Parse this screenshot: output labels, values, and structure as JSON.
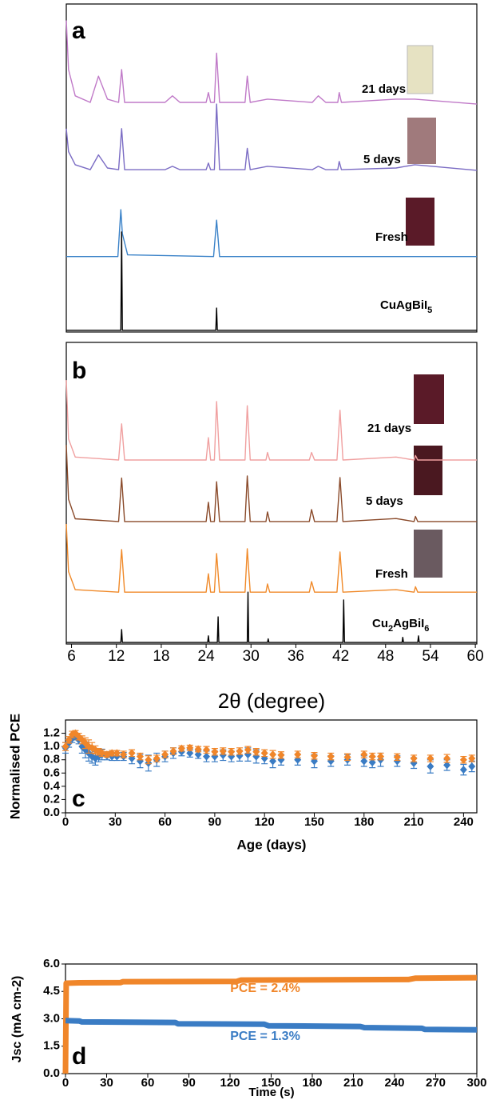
{
  "chart_data": [
    {
      "type": "line",
      "panel_label": "a",
      "xlim": [
        5.3,
        60.2
      ],
      "ylim": [
        0,
        100
      ],
      "series": [
        {
          "name": "21 days",
          "color": "#c07ac8",
          "x": [
            5.3,
            5.6,
            6.5,
            8.5,
            9.6,
            10.8,
            12.3,
            12.7,
            13.1,
            18.5,
            19.5,
            20.5,
            24.0,
            24.3,
            24.6,
            25.1,
            25.4,
            25.8,
            29.2,
            29.5,
            29.9,
            32.2,
            38.2,
            39.0,
            40.0,
            41.6,
            41.8,
            42.1,
            49.4,
            51.9,
            60.2
          ],
          "values": [
            95,
            80,
            72,
            70,
            78,
            71,
            70,
            80,
            70,
            70,
            72,
            70,
            70,
            73,
            70,
            70,
            85,
            70,
            70,
            78,
            70,
            71,
            70,
            72,
            70,
            70,
            73,
            70,
            71,
            71,
            69.5
          ]
        },
        {
          "name": "5 days",
          "color": "#7b6cc4",
          "x": [
            5.3,
            5.6,
            6.5,
            8.5,
            9.6,
            10.8,
            12.3,
            12.7,
            13.1,
            18.5,
            19.5,
            20.5,
            24.0,
            24.3,
            24.6,
            25.1,
            25.4,
            25.8,
            29.2,
            29.5,
            29.9,
            32.2,
            38.2,
            39.0,
            40.0,
            41.6,
            41.8,
            42.1,
            49.4,
            51.9,
            60.2
          ],
          "values": [
            62,
            55,
            51,
            49.5,
            54,
            50,
            49.5,
            62,
            49.5,
            49.5,
            50.5,
            49.5,
            49.5,
            51.5,
            49.5,
            49.5,
            69.5,
            49.5,
            49.5,
            56,
            49.5,
            50.5,
            49.5,
            50.5,
            49.5,
            49.5,
            52,
            49.5,
            50,
            51,
            49.3
          ]
        },
        {
          "name": "Fresh",
          "color": "#3a82c8",
          "x": [
            5.3,
            12.2,
            12.6,
            12.8,
            13.5,
            25.0,
            25.4,
            25.8,
            60.2
          ],
          "values": [
            23,
            23,
            37.3,
            30,
            23.5,
            23,
            34.1,
            23,
            23
          ]
        },
        {
          "name": "CuAgBiI5",
          "color": "#000000",
          "x": [
            5.3,
            12.6,
            12.7,
            12.8,
            25.3,
            25.4,
            25.5,
            60.2
          ],
          "values": [
            0.5,
            0.5,
            30.5,
            0.5,
            0.5,
            7.3,
            0.5,
            0.5
          ]
        }
      ]
    },
    {
      "type": "line",
      "panel_label": "b",
      "xlabel": "2θ (degree)",
      "xlim": [
        5.3,
        60.2
      ],
      "ylim": [
        0,
        100
      ],
      "xticks": [
        6,
        12,
        18,
        24,
        30,
        36,
        42,
        48,
        54,
        60
      ],
      "series": [
        {
          "name": "21 days",
          "color": "#f0a0a0",
          "x": [
            5.3,
            5.6,
            6.5,
            12.3,
            12.7,
            13.1,
            24.0,
            24.3,
            24.6,
            25.1,
            25.4,
            25.8,
            29.2,
            29.5,
            29.9,
            32.0,
            32.2,
            32.5,
            37.8,
            38.1,
            38.5,
            41.5,
            41.9,
            42.3,
            49.4,
            51.8,
            52.0,
            52.3,
            60.2
          ],
          "values": [
            87.5,
            68,
            62,
            61,
            73,
            61,
            61,
            68.4,
            61,
            61,
            80.4,
            61,
            61,
            79,
            61,
            61,
            63.5,
            61,
            61,
            63.5,
            61,
            61,
            77.5,
            61,
            62,
            61,
            62.5,
            61,
            61
          ]
        },
        {
          "name": "5 days",
          "color": "#8a4a2a",
          "x": [
            5.3,
            5.6,
            6.5,
            12.3,
            12.7,
            13.1,
            24.0,
            24.3,
            24.6,
            25.1,
            25.4,
            25.8,
            29.2,
            29.5,
            29.9,
            32.0,
            32.2,
            32.5,
            37.8,
            38.1,
            38.5,
            41.5,
            41.9,
            42.3,
            49.4,
            51.8,
            52.0,
            52.3,
            60.2
          ],
          "values": [
            66,
            48,
            41.5,
            40.6,
            55,
            40.6,
            40.6,
            47,
            40.6,
            40.6,
            53.8,
            40.6,
            40.6,
            55.7,
            40.6,
            40.6,
            43.8,
            40.6,
            40.6,
            44.6,
            40.6,
            40.6,
            55.2,
            40.6,
            41.6,
            40.6,
            42.3,
            40.6,
            40.6
          ]
        },
        {
          "name": "Fresh",
          "color": "#f08a2a",
          "x": [
            5.3,
            5.6,
            6.5,
            12.3,
            12.7,
            13.1,
            24.0,
            24.3,
            24.6,
            25.1,
            25.4,
            25.8,
            29.2,
            29.5,
            29.9,
            32.0,
            32.2,
            32.5,
            37.8,
            38.1,
            38.5,
            41.5,
            41.9,
            42.3,
            49.4,
            51.8,
            52.0,
            52.3,
            60.2
          ],
          "values": [
            39.8,
            24,
            18,
            17.2,
            31.3,
            17.2,
            17.2,
            23.3,
            17.2,
            17.2,
            30,
            17.2,
            17.2,
            31.6,
            17.2,
            17.2,
            19.9,
            17.2,
            17.2,
            20.7,
            17.2,
            17.2,
            30.5,
            17.2,
            18,
            17.2,
            19,
            17.2,
            17.2
          ]
        },
        {
          "name": "Cu2AgBiI6",
          "color": "#000000",
          "x": [
            5.3,
            12.6,
            12.7,
            12.8,
            24.2,
            24.3,
            24.4,
            25.5,
            25.6,
            25.7,
            29.5,
            29.6,
            29.7,
            32.2,
            32.3,
            32.4,
            42.3,
            42.4,
            42.5,
            50.2,
            50.3,
            50.4,
            52.3,
            52.4,
            52.5,
            60.2
          ],
          "values": [
            0.5,
            0.5,
            4.8,
            0.5,
            0.5,
            2.7,
            0.5,
            0.5,
            9,
            0.5,
            0.5,
            17.2,
            0.5,
            0.5,
            1.7,
            0.5,
            0.5,
            14.6,
            0.5,
            0.5,
            2.2,
            0.5,
            0.5,
            2.7,
            0.5,
            0.5
          ]
        }
      ]
    },
    {
      "type": "scatter",
      "panel_label": "c",
      "xlabel": "Age (days)",
      "ylabel": "Normalised PCE",
      "xlim": [
        0,
        248
      ],
      "ylim": [
        0,
        1.4
      ],
      "xticks": [
        0,
        30,
        60,
        90,
        120,
        150,
        180,
        210,
        240
      ],
      "yticks": [
        {
          "value": 0,
          "label": "0.0"
        },
        0.2,
        0.4,
        0.6,
        0.8,
        {
          "value": 1,
          "label": "1.0"
        },
        1.2
      ],
      "x": [
        0,
        2,
        4,
        6,
        8,
        10,
        12,
        14,
        16,
        18,
        20,
        22,
        25,
        28,
        31,
        35,
        40,
        45,
        50,
        55,
        60,
        65,
        70,
        75,
        80,
        85,
        90,
        95,
        100,
        105,
        110,
        115,
        120,
        125,
        130,
        140,
        150,
        160,
        170,
        180,
        185,
        190,
        200,
        210,
        220,
        230,
        240,
        245
      ],
      "series": [
        {
          "color": "#3a7cc4",
          "values": [
            0.98,
            1.05,
            1.12,
            1.15,
            1.1,
            1.0,
            0.95,
            0.9,
            0.85,
            0.82,
            0.85,
            0.88,
            0.86,
            0.85,
            0.85,
            0.85,
            0.82,
            0.78,
            0.75,
            0.8,
            0.85,
            0.9,
            0.92,
            0.9,
            0.88,
            0.85,
            0.85,
            0.87,
            0.85,
            0.86,
            0.88,
            0.85,
            0.82,
            0.78,
            0.8,
            0.8,
            0.78,
            0.78,
            0.8,
            0.78,
            0.76,
            0.8,
            0.78,
            0.75,
            0.7,
            0.72,
            0.65,
            0.7
          ],
          "errors": [
            0.08,
            0.06,
            0.06,
            0.05,
            0.06,
            0.1,
            0.12,
            0.12,
            0.1,
            0.1,
            0.08,
            0.08,
            0.06,
            0.06,
            0.06,
            0.06,
            0.08,
            0.1,
            0.12,
            0.1,
            0.08,
            0.08,
            0.06,
            0.06,
            0.06,
            0.08,
            0.08,
            0.08,
            0.08,
            0.08,
            0.1,
            0.1,
            0.08,
            0.1,
            0.08,
            0.08,
            0.1,
            0.08,
            0.08,
            0.08,
            0.08,
            0.1,
            0.08,
            0.08,
            0.1,
            0.08,
            0.08,
            0.08
          ]
        },
        {
          "color": "#f0862a",
          "values": [
            1.0,
            1.1,
            1.18,
            1.2,
            1.15,
            1.1,
            1.05,
            1.0,
            0.98,
            0.95,
            0.92,
            0.9,
            0.88,
            0.9,
            0.9,
            0.88,
            0.9,
            0.85,
            0.8,
            0.82,
            0.88,
            0.93,
            0.97,
            0.98,
            0.96,
            0.95,
            0.92,
            0.93,
            0.92,
            0.93,
            0.95,
            0.92,
            0.9,
            0.88,
            0.87,
            0.88,
            0.86,
            0.85,
            0.84,
            0.88,
            0.85,
            0.85,
            0.84,
            0.82,
            0.82,
            0.82,
            0.8,
            0.82
          ],
          "errors": [
            0.06,
            0.05,
            0.05,
            0.04,
            0.05,
            0.06,
            0.08,
            0.1,
            0.08,
            0.06,
            0.05,
            0.05,
            0.04,
            0.04,
            0.04,
            0.05,
            0.05,
            0.05,
            0.06,
            0.05,
            0.05,
            0.05,
            0.04,
            0.04,
            0.04,
            0.05,
            0.05,
            0.05,
            0.05,
            0.05,
            0.05,
            0.05,
            0.05,
            0.06,
            0.05,
            0.05,
            0.05,
            0.05,
            0.05,
            0.05,
            0.05,
            0.05,
            0.05,
            0.05,
            0.05,
            0.06,
            0.05,
            0.05
          ]
        }
      ]
    },
    {
      "type": "line",
      "panel_label": "d",
      "xlabel": "Time (s)",
      "ylabel": "Jsc (mA cm-2)",
      "xlim": [
        0,
        300
      ],
      "ylim": [
        0,
        6
      ],
      "xticks": [
        0,
        30,
        60,
        90,
        120,
        150,
        180,
        210,
        240,
        270,
        300
      ],
      "yticks": [
        {
          "value": 0,
          "label": "0.0"
        },
        1.5,
        {
          "value": 3,
          "label": "3.0"
        },
        4.5,
        {
          "value": 6,
          "label": "6.0"
        }
      ],
      "series": [
        {
          "label": "PCE = 2.4%",
          "color": "#f0862a",
          "x": [
            0,
            0.5,
            10,
            40,
            42,
            125,
            128,
            250,
            255,
            300
          ],
          "values": [
            0,
            4.95,
            4.97,
            4.98,
            5.03,
            5.05,
            5.12,
            5.15,
            5.22,
            5.25
          ]
        },
        {
          "label": "PCE = 1.3%",
          "color": "#3a7cc4",
          "x": [
            0,
            10,
            12,
            80,
            82,
            145,
            148,
            215,
            218,
            260,
            262,
            300
          ],
          "values": [
            2.9,
            2.88,
            2.83,
            2.8,
            2.73,
            2.7,
            2.62,
            2.58,
            2.52,
            2.48,
            2.42,
            2.4
          ]
        }
      ]
    }
  ]
}
